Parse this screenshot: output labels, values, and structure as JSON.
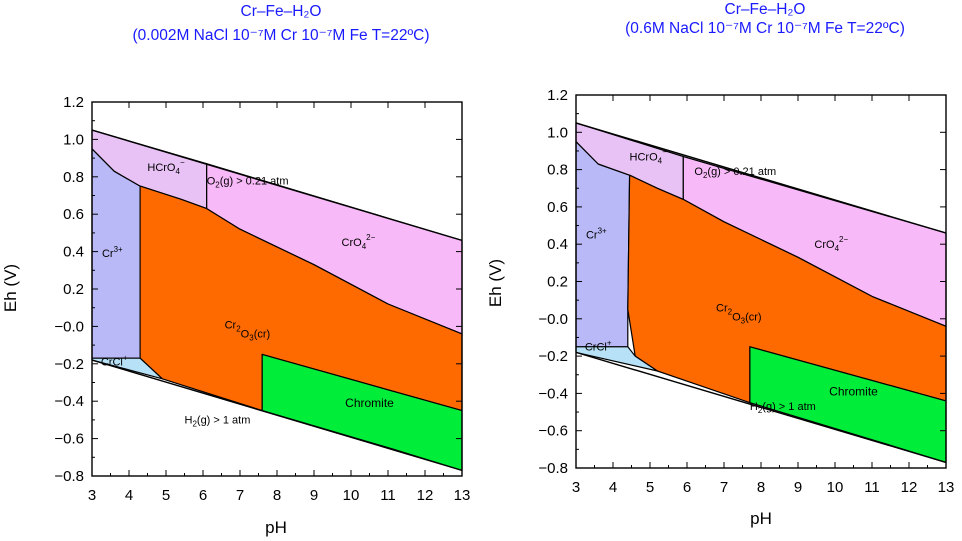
{
  "colors": {
    "title": "#1a1aff",
    "cr3": "#b9b9f7",
    "hcro4": "#e8c2f5",
    "cro4": "#f7b9f7",
    "cr2o3": "#ff6a00",
    "chromite": "#00ee3a",
    "crcl": "#b7e1f7"
  },
  "chart_data": [
    {
      "type": "area",
      "title_line1": "Cr–Fe–H₂O",
      "title_line2": "(0.002M NaCl 10⁻⁷M Cr 10⁻⁷M Fe T=22ºC)",
      "xlabel": "pH",
      "ylabel": "Eh (V)",
      "xlim": [
        3,
        13
      ],
      "ylim": [
        -0.8,
        1.2
      ],
      "xticks": [
        "3",
        "4",
        "5",
        "6",
        "7",
        "8",
        "9",
        "10",
        "11",
        "12",
        "13"
      ],
      "yticks": [
        "−0.8",
        "−0.6",
        "−0.4",
        "−0.2",
        "−0.0",
        "0.2",
        "0.4",
        "0.6",
        "0.8",
        "1.0",
        "1.2"
      ],
      "water_upper": [
        [
          3,
          1.05
        ],
        [
          13,
          0.46
        ]
      ],
      "water_lower": [
        [
          3,
          -0.18
        ],
        [
          13,
          -0.77
        ]
      ],
      "regions": [
        {
          "name": "cr3",
          "label": "Cr",
          "label_sup": "3+",
          "label_at": [
            3.55,
            0.37
          ],
          "polygon": [
            [
              3,
              0.93
            ],
            [
              3,
              -0.17
            ],
            [
              4.3,
              -0.17
            ],
            [
              4.3,
              0.75
            ],
            [
              3.6,
              0.83
            ],
            [
              3,
              0.95
            ]
          ]
        },
        {
          "name": "hcro4",
          "label": "HCrO",
          "label_sub": "4",
          "label_sup": "−",
          "label_at": [
            5.0,
            0.83
          ],
          "polygon": [
            [
              3,
              0.95
            ],
            [
              3,
              1.05
            ],
            [
              6.1,
              0.87
            ],
            [
              6.1,
              0.63
            ],
            [
              5.4,
              0.68
            ],
            [
              4.3,
              0.75
            ],
            [
              3.6,
              0.83
            ]
          ]
        },
        {
          "name": "cro4",
          "label": "CrO",
          "label_sub": "4",
          "label_sup": "2−",
          "label_at": [
            10.2,
            0.43
          ],
          "polygon": [
            [
              6.1,
              0.87
            ],
            [
              13,
              0.46
            ],
            [
              13,
              -0.04
            ],
            [
              11,
              0.12
            ],
            [
              9,
              0.33
            ],
            [
              7,
              0.52
            ],
            [
              6.1,
              0.63
            ]
          ]
        },
        {
          "name": "cr2o3",
          "label": "Cr",
          "label_sub": "2",
          "label_rest": "O",
          "label_sub2": "3",
          "label_tail": "(cr)",
          "label_at": [
            7.2,
            -0.01
          ],
          "polygon": [
            [
              4.3,
              0.75
            ],
            [
              5.4,
              0.68
            ],
            [
              6.1,
              0.63
            ],
            [
              7,
              0.52
            ],
            [
              9,
              0.33
            ],
            [
              11,
              0.12
            ],
            [
              13,
              -0.04
            ],
            [
              13,
              -0.45
            ],
            [
              7.6,
              -0.15
            ],
            [
              7.6,
              -0.45
            ],
            [
              4.9,
              -0.28
            ],
            [
              4.3,
              -0.17
            ]
          ]
        },
        {
          "name": "chromite",
          "label": "Chromite",
          "label_at": [
            10.5,
            -0.43
          ],
          "polygon": [
            [
              7.6,
              -0.15
            ],
            [
              13,
              -0.45
            ],
            [
              13,
              -0.77
            ],
            [
              11.2,
              -0.66
            ],
            [
              7.6,
              -0.45
            ]
          ]
        },
        {
          "name": "crcl",
          "label": "CrCl",
          "label_sup": "+",
          "label_at": [
            3.6,
            -0.21
          ],
          "polygon": [
            [
              3,
              -0.17
            ],
            [
              4.3,
              -0.17
            ],
            [
              4.9,
              -0.28
            ],
            [
              3,
              -0.18
            ]
          ]
        }
      ],
      "upper_note": {
        "label": "O",
        "sub": "2",
        "rest": "(g) > 0.21 atm",
        "at": [
          6.1,
          0.76
        ]
      },
      "lower_note": {
        "label": "H",
        "sub": "2",
        "rest": "(g) > 1 atm",
        "at": [
          5.5,
          -0.52
        ]
      }
    },
    {
      "type": "area",
      "title_line1": "Cr–Fe–H₂O",
      "title_line2": "(0.6M NaCl 10⁻⁷M Cr 10⁻⁷M Fe T=22ºC)",
      "xlabel": "pH",
      "ylabel": "Eh (V)",
      "xlim": [
        3,
        13
      ],
      "ylim": [
        -0.8,
        1.2
      ],
      "xticks": [
        "3",
        "4",
        "5",
        "6",
        "7",
        "8",
        "9",
        "10",
        "11",
        "12",
        "13"
      ],
      "yticks": [
        "−0.8",
        "−0.6",
        "−0.4",
        "−0.2",
        "−0.0",
        "0.2",
        "0.4",
        "0.6",
        "0.8",
        "1.0",
        "1.2"
      ],
      "water_upper": [
        [
          3,
          1.05
        ],
        [
          13,
          0.46
        ]
      ],
      "water_lower": [
        [
          3,
          -0.18
        ],
        [
          13,
          -0.77
        ]
      ],
      "regions": [
        {
          "name": "cr3",
          "label": "Cr",
          "label_sup": "3+",
          "label_at": [
            3.55,
            0.43
          ],
          "polygon": [
            [
              3,
              0.93
            ],
            [
              3,
              -0.15
            ],
            [
              4.4,
              -0.15
            ],
            [
              4.4,
              0.05
            ],
            [
              4.45,
              0.77
            ],
            [
              3.6,
              0.83
            ],
            [
              3,
              0.95
            ]
          ]
        },
        {
          "name": "hcro4",
          "label": "HCrO",
          "label_sub": "4",
          "label_sup": "−",
          "label_at": [
            4.95,
            0.85
          ],
          "polygon": [
            [
              3,
              0.95
            ],
            [
              3,
              1.05
            ],
            [
              5.9,
              0.87
            ],
            [
              5.9,
              0.64
            ],
            [
              5.2,
              0.7
            ],
            [
              4.45,
              0.77
            ],
            [
              3.6,
              0.83
            ]
          ]
        },
        {
          "name": "cro4",
          "label": "CrO",
          "label_sub": "4",
          "label_sup": "2−",
          "label_at": [
            9.9,
            0.38
          ],
          "polygon": [
            [
              5.9,
              0.87
            ],
            [
              13,
              0.46
            ],
            [
              13,
              -0.04
            ],
            [
              11,
              0.12
            ],
            [
              9,
              0.33
            ],
            [
              7,
              0.52
            ],
            [
              5.9,
              0.64
            ]
          ]
        },
        {
          "name": "cr2o3",
          "label": "Cr",
          "label_sub": "2",
          "label_rest": "O",
          "label_sub2": "3",
          "label_tail": "(cr)",
          "label_at": [
            7.4,
            0.04
          ],
          "polygon": [
            [
              4.45,
              0.77
            ],
            [
              5.2,
              0.7
            ],
            [
              5.9,
              0.64
            ],
            [
              7,
              0.52
            ],
            [
              9,
              0.33
            ],
            [
              11,
              0.12
            ],
            [
              13,
              -0.04
            ],
            [
              13,
              -0.44
            ],
            [
              7.7,
              -0.15
            ],
            [
              7.7,
              -0.45
            ],
            [
              5.2,
              -0.28
            ],
            [
              4.6,
              -0.2
            ],
            [
              4.4,
              0.05
            ]
          ]
        },
        {
          "name": "chromite",
          "label": "Chromite",
          "label_at": [
            10.5,
            -0.41
          ],
          "polygon": [
            [
              7.7,
              -0.15
            ],
            [
              13,
              -0.44
            ],
            [
              13,
              -0.77
            ],
            [
              11.2,
              -0.66
            ],
            [
              7.7,
              -0.45
            ]
          ]
        },
        {
          "name": "crcl",
          "label": "CrCl",
          "label_sup": "+",
          "label_at": [
            3.6,
            -0.17
          ],
          "polygon": [
            [
              3,
              -0.15
            ],
            [
              4.4,
              -0.15
            ],
            [
              4.6,
              -0.2
            ],
            [
              5.2,
              -0.28
            ],
            [
              3,
              -0.18
            ]
          ]
        }
      ],
      "upper_note": {
        "label": "O",
        "sub": "2",
        "rest": "(g) > 0.21 atm",
        "at": [
          6.2,
          0.77
        ]
      },
      "lower_note": {
        "label": "H",
        "sub": "2",
        "rest": "(g) > 1 atm",
        "at": [
          7.7,
          -0.49
        ]
      }
    }
  ]
}
